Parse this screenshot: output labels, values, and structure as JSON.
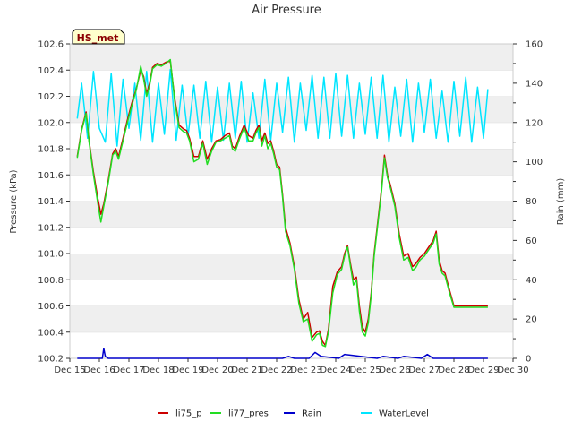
{
  "chart_data": {
    "type": "line",
    "title": "Air Pressure",
    "badge": "HS_met",
    "xlabel": "",
    "ylabel": "Pressure (kPa)",
    "y2label": "Rain (mm)",
    "xlim": [
      15,
      30
    ],
    "ylim": [
      100.2,
      102.6
    ],
    "y2lim": [
      0,
      160
    ],
    "x_ticks": [
      {
        "x": 15,
        "label": "Dec 15"
      },
      {
        "x": 16,
        "label": "Dec 16"
      },
      {
        "x": 17,
        "label": "Dec 17"
      },
      {
        "x": 18,
        "label": "Dec 18"
      },
      {
        "x": 19,
        "label": "Dec 19"
      },
      {
        "x": 20,
        "label": "Dec 20"
      },
      {
        "x": 21,
        "label": "Dec 21"
      },
      {
        "x": 22,
        "label": "Dec 22"
      },
      {
        "x": 23,
        "label": "Dec 23"
      },
      {
        "x": 24,
        "label": "Dec 24"
      },
      {
        "x": 25,
        "label": "Dec 25"
      },
      {
        "x": 26,
        "label": "Dec 26"
      },
      {
        "x": 27,
        "label": "Dec 27"
      },
      {
        "x": 28,
        "label": "Dec 28"
      },
      {
        "x": 29,
        "label": "Dec 29"
      },
      {
        "x": 30,
        "label": "Dec 30"
      }
    ],
    "y_ticks": [
      {
        "v": 100.2,
        "label": "100.2"
      },
      {
        "v": 100.4,
        "label": "100.4"
      },
      {
        "v": 100.6,
        "label": "100.6"
      },
      {
        "v": 100.8,
        "label": "100.8"
      },
      {
        "v": 101.0,
        "label": "101.0"
      },
      {
        "v": 101.2,
        "label": "101.2"
      },
      {
        "v": 101.4,
        "label": "101.4"
      },
      {
        "v": 101.6,
        "label": "101.6"
      },
      {
        "v": 101.8,
        "label": "101.8"
      },
      {
        "v": 102.0,
        "label": "102.0"
      },
      {
        "v": 102.2,
        "label": "102.2"
      },
      {
        "v": 102.4,
        "label": "102.4"
      },
      {
        "v": 102.6,
        "label": "102.6"
      }
    ],
    "y2_ticks": [
      {
        "v": 0,
        "label": "0"
      },
      {
        "v": 20,
        "label": "20"
      },
      {
        "v": 40,
        "label": "40"
      },
      {
        "v": 60,
        "label": "60"
      },
      {
        "v": 80,
        "label": "80"
      },
      {
        "v": 100,
        "label": "100"
      },
      {
        "v": 120,
        "label": "120"
      },
      {
        "v": 140,
        "label": "140"
      },
      {
        "v": 160,
        "label": "160"
      }
    ],
    "series": [
      {
        "name": "li75_p",
        "color": "#cc0000",
        "axis": "left",
        "x": [
          15.25,
          15.4,
          15.55,
          15.65,
          15.8,
          15.95,
          16.05,
          16.15,
          16.3,
          16.45,
          16.55,
          16.65,
          16.8,
          16.95,
          17.1,
          17.25,
          17.4,
          17.5,
          17.6,
          17.7,
          17.8,
          17.95,
          18.1,
          18.25,
          18.4,
          18.55,
          18.7,
          18.85,
          18.95,
          19.05,
          19.2,
          19.35,
          19.5,
          19.65,
          19.8,
          19.95,
          20.1,
          20.25,
          20.4,
          20.5,
          20.6,
          20.75,
          20.9,
          21.05,
          21.2,
          21.3,
          21.4,
          21.5,
          21.6,
          21.7,
          21.8,
          21.9,
          22.0,
          22.1,
          22.2,
          22.3,
          22.45,
          22.6,
          22.75,
          22.9,
          23.05,
          23.2,
          23.35,
          23.45,
          23.55,
          23.65,
          23.75,
          23.9,
          24.05,
          24.2,
          24.3,
          24.4,
          24.5,
          24.6,
          24.7,
          24.8,
          24.9,
          25.0,
          25.1,
          25.2,
          25.3,
          25.45,
          25.55,
          25.65,
          25.75,
          25.85,
          26.0,
          26.15,
          26.3,
          26.45,
          26.6,
          26.7,
          26.85,
          27.0,
          27.15,
          27.3,
          27.4,
          27.5,
          27.6,
          27.7,
          27.85,
          28.0,
          28.15,
          28.3,
          28.45,
          28.6,
          28.7,
          28.85,
          29.0,
          29.15
        ],
        "y": [
          101.74,
          101.95,
          102.08,
          101.86,
          101.62,
          101.42,
          101.3,
          101.38,
          101.56,
          101.76,
          101.8,
          101.74,
          101.88,
          102.02,
          102.15,
          102.26,
          102.4,
          102.35,
          102.22,
          102.3,
          102.42,
          102.45,
          102.44,
          102.46,
          102.47,
          102.18,
          101.98,
          101.95,
          101.94,
          101.88,
          101.74,
          101.74,
          101.86,
          101.72,
          101.8,
          101.86,
          101.87,
          101.9,
          101.92,
          101.82,
          101.8,
          101.9,
          101.98,
          101.9,
          101.88,
          101.94,
          101.98,
          101.86,
          101.92,
          101.84,
          101.86,
          101.78,
          101.68,
          101.66,
          101.45,
          101.2,
          101.08,
          100.9,
          100.65,
          100.5,
          100.55,
          100.36,
          100.4,
          100.41,
          100.33,
          100.3,
          100.42,
          100.75,
          100.86,
          100.9,
          101.0,
          101.06,
          100.92,
          100.8,
          100.82,
          100.6,
          100.44,
          100.4,
          100.5,
          100.7,
          101.0,
          101.3,
          101.5,
          101.75,
          101.6,
          101.52,
          101.38,
          101.15,
          100.98,
          101.0,
          100.9,
          100.92,
          100.97,
          101.0,
          101.05,
          101.1,
          101.17,
          100.95,
          100.87,
          100.85,
          100.72,
          100.6,
          100.6,
          100.6,
          100.6,
          100.6,
          100.6,
          100.6,
          100.6,
          100.6
        ]
      },
      {
        "name": "li77_pres",
        "color": "#22dd22",
        "axis": "left",
        "x": [
          15.25,
          15.4,
          15.55,
          15.65,
          15.8,
          15.95,
          16.05,
          16.15,
          16.3,
          16.45,
          16.55,
          16.65,
          16.8,
          16.95,
          17.1,
          17.25,
          17.4,
          17.5,
          17.6,
          17.7,
          17.8,
          17.95,
          18.1,
          18.25,
          18.4,
          18.55,
          18.7,
          18.85,
          18.95,
          19.05,
          19.2,
          19.35,
          19.5,
          19.65,
          19.8,
          19.95,
          20.1,
          20.25,
          20.4,
          20.5,
          20.6,
          20.75,
          20.9,
          21.05,
          21.2,
          21.3,
          21.4,
          21.5,
          21.6,
          21.7,
          21.8,
          21.9,
          22.0,
          22.1,
          22.2,
          22.3,
          22.45,
          22.6,
          22.75,
          22.9,
          23.05,
          23.2,
          23.35,
          23.45,
          23.55,
          23.65,
          23.75,
          23.9,
          24.05,
          24.2,
          24.3,
          24.4,
          24.5,
          24.6,
          24.7,
          24.8,
          24.9,
          25.0,
          25.1,
          25.2,
          25.3,
          25.45,
          25.55,
          25.65,
          25.75,
          25.85,
          26.0,
          26.15,
          26.3,
          26.45,
          26.6,
          26.7,
          26.85,
          27.0,
          27.15,
          27.3,
          27.4,
          27.5,
          27.6,
          27.7,
          27.85,
          28.0,
          28.15,
          28.3,
          28.45,
          28.6,
          28.7,
          28.85,
          29.0,
          29.15
        ],
        "y": [
          101.73,
          101.94,
          102.07,
          101.85,
          101.6,
          101.38,
          101.24,
          101.36,
          101.54,
          101.75,
          101.78,
          101.72,
          101.86,
          102.0,
          102.13,
          102.25,
          102.43,
          102.33,
          102.2,
          102.28,
          102.41,
          102.44,
          102.43,
          102.45,
          102.48,
          102.16,
          101.96,
          101.93,
          101.92,
          101.86,
          101.7,
          101.72,
          101.84,
          101.68,
          101.78,
          101.85,
          101.86,
          101.88,
          101.9,
          101.8,
          101.78,
          101.88,
          101.96,
          101.86,
          101.86,
          101.92,
          101.96,
          101.82,
          101.9,
          101.8,
          101.84,
          101.76,
          101.66,
          101.64,
          101.43,
          101.17,
          101.06,
          100.88,
          100.62,
          100.48,
          100.5,
          100.33,
          100.38,
          100.39,
          100.3,
          100.29,
          100.4,
          100.7,
          100.84,
          100.88,
          100.98,
          101.05,
          100.9,
          100.76,
          100.8,
          100.56,
          100.4,
          100.37,
          100.47,
          100.68,
          100.98,
          101.28,
          101.48,
          101.73,
          101.58,
          101.5,
          101.36,
          101.12,
          100.95,
          100.97,
          100.87,
          100.89,
          100.95,
          100.98,
          101.03,
          101.08,
          101.15,
          100.92,
          100.85,
          100.83,
          100.7,
          100.59,
          100.59,
          100.59,
          100.59,
          100.59,
          100.59,
          100.59,
          100.59,
          100.59
        ]
      },
      {
        "name": "Rain",
        "color": "#0000cc",
        "axis": "right",
        "x": [
          15.25,
          16.1,
          16.15,
          16.2,
          16.3,
          22.2,
          22.4,
          22.6,
          23.1,
          23.3,
          23.5,
          24.1,
          24.3,
          25.4,
          25.6,
          26.1,
          26.3,
          26.9,
          27.1,
          27.3,
          29.15
        ],
        "y": [
          0,
          0,
          5,
          1,
          0,
          0,
          1,
          0,
          0,
          3,
          1,
          0,
          2,
          0,
          1,
          0,
          1,
          0,
          2,
          0,
          0
        ]
      },
      {
        "name": "WaterLevel",
        "color": "#00e5ff",
        "axis": "right",
        "x": [
          15.25,
          15.4,
          15.6,
          15.8,
          16.0,
          16.2,
          16.4,
          16.6,
          16.8,
          17.0,
          17.2,
          17.4,
          17.6,
          17.8,
          18.0,
          18.2,
          18.4,
          18.6,
          18.8,
          19.0,
          19.2,
          19.4,
          19.6,
          19.8,
          20.0,
          20.2,
          20.4,
          20.6,
          20.8,
          21.0,
          21.2,
          21.4,
          21.6,
          21.8,
          22.0,
          22.2,
          22.4,
          22.6,
          22.8,
          23.0,
          23.2,
          23.4,
          23.6,
          23.8,
          24.0,
          24.2,
          24.4,
          24.6,
          24.8,
          25.0,
          25.2,
          25.4,
          25.6,
          25.8,
          26.0,
          26.2,
          26.4,
          26.6,
          26.8,
          27.0,
          27.2,
          27.4,
          27.6,
          27.8,
          28.0,
          28.2,
          28.4,
          28.6,
          28.8,
          29.0,
          29.15
        ],
        "y": [
          122,
          140,
          112,
          146,
          117,
          110,
          145,
          108,
          142,
          117,
          140,
          111,
          146,
          110,
          140,
          114,
          147,
          111,
          139,
          113,
          139,
          112,
          141,
          110,
          138,
          111,
          140,
          112,
          141,
          110,
          135,
          112,
          142,
          111,
          140,
          115,
          143,
          110,
          140,
          116,
          144,
          112,
          143,
          112,
          145,
          113,
          144,
          112,
          140,
          114,
          143,
          112,
          144,
          110,
          138,
          113,
          142,
          110,
          140,
          115,
          142,
          112,
          136,
          110,
          141,
          113,
          143,
          110,
          138,
          112,
          137
        ]
      }
    ],
    "legend": [
      "li75_p",
      "li77_pres",
      "Rain",
      "WaterLevel"
    ],
    "legend_position": "bottom-center",
    "grid": true
  }
}
